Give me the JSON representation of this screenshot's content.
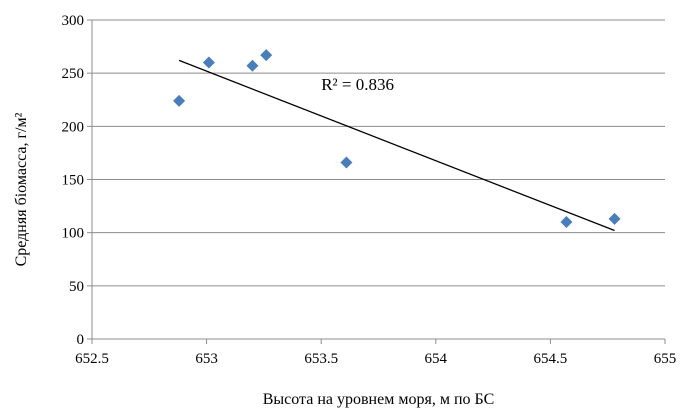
{
  "chart_data": {
    "type": "scatter",
    "xlabel": "Высота на уровнем моря, м по БС",
    "ylabel": "Средняя біомасса, г/м²",
    "xlim": [
      652.5,
      655
    ],
    "ylim": [
      0,
      300
    ],
    "x_ticks": [
      652.5,
      653,
      653.5,
      654,
      654.5,
      655
    ],
    "x_tick_labels": [
      "652.5",
      "653",
      "653.5",
      "654",
      "654.5",
      "655"
    ],
    "y_ticks": [
      0,
      50,
      100,
      150,
      200,
      250,
      300
    ],
    "y_tick_labels": [
      "0",
      "50",
      "100",
      "150",
      "200",
      "250",
      "300"
    ],
    "grid": "horizontal",
    "marker": "diamond",
    "marker_color": "#4a7ebb",
    "series": [
      {
        "points": [
          {
            "x": 652.88,
            "y": 224
          },
          {
            "x": 653.01,
            "y": 260
          },
          {
            "x": 653.2,
            "y": 257
          },
          {
            "x": 653.26,
            "y": 267
          },
          {
            "x": 653.61,
            "y": 166
          },
          {
            "x": 654.57,
            "y": 110
          },
          {
            "x": 654.78,
            "y": 113
          }
        ]
      }
    ],
    "trendline": {
      "type": "linear",
      "x_start": 652.88,
      "y_start": 262,
      "x_end": 654.78,
      "y_end": 102,
      "color": "#000000"
    },
    "annotation": {
      "text": "R² = 0.836",
      "x": 653.5,
      "y": 234
    }
  }
}
